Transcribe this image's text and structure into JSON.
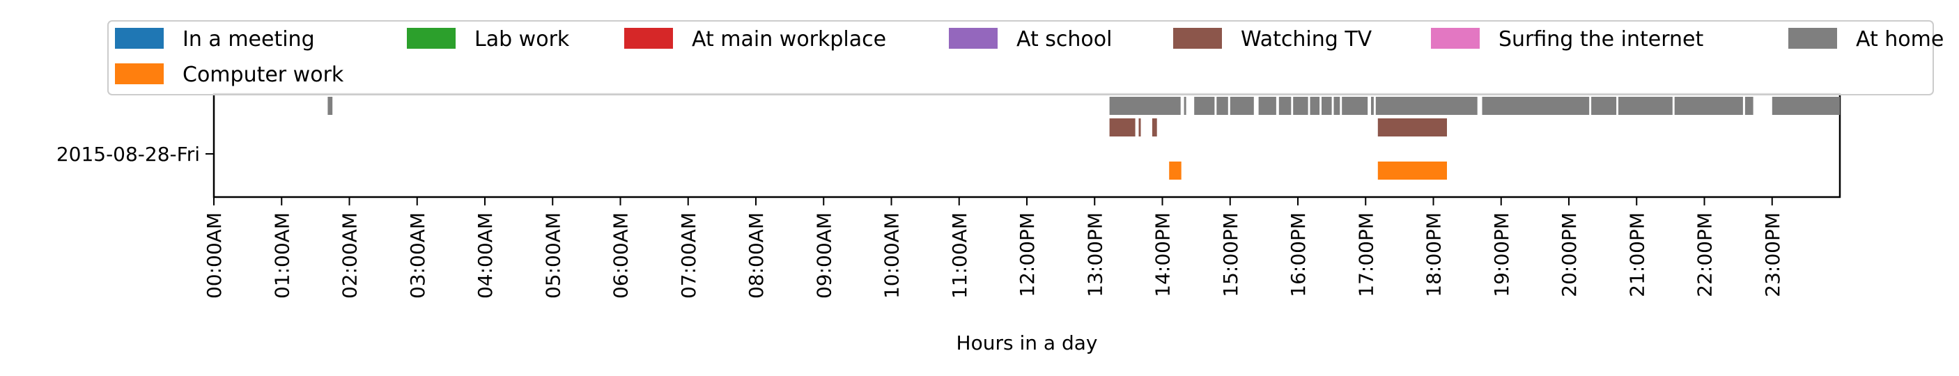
{
  "chart_data": {
    "type": "timeline",
    "xlabel": "Hours in a day",
    "ylabel": "",
    "xlim_hours": [
      0,
      24
    ],
    "x_tick_labels": [
      "00:00AM",
      "01:00AM",
      "02:00AM",
      "03:00AM",
      "04:00AM",
      "05:00AM",
      "06:00AM",
      "07:00AM",
      "08:00AM",
      "09:00AM",
      "10:00AM",
      "11:00AM",
      "12:00PM",
      "13:00PM",
      "14:00PM",
      "15:00PM",
      "16:00PM",
      "17:00PM",
      "18:00PM",
      "19:00PM",
      "20:00PM",
      "21:00PM",
      "22:00PM",
      "23:00PM"
    ],
    "y_categories": [
      "2015-08-28-Fri"
    ],
    "legend": {
      "placement": "top",
      "entries": [
        {
          "label": "In a meeting",
          "color": "#1f77b4"
        },
        {
          "label": "Lab work",
          "color": "#2ca02c"
        },
        {
          "label": "At main workplace",
          "color": "#d62728"
        },
        {
          "label": "At school",
          "color": "#9467bd"
        },
        {
          "label": "Watching TV",
          "color": "#8c564b"
        },
        {
          "label": "Surfing the internet",
          "color": "#e377c2"
        },
        {
          "label": "At home",
          "color": "#7f7f7f"
        },
        {
          "label": "Computer work",
          "color": "#ff7f0e"
        }
      ]
    },
    "series": [
      {
        "name": "At home",
        "color": "#7f7f7f",
        "row": 0,
        "intervals": [
          [
            1.68,
            1.75
          ],
          [
            13.22,
            14.27
          ],
          [
            14.32,
            14.35
          ],
          [
            14.47,
            14.77
          ],
          [
            14.8,
            14.97
          ],
          [
            15.0,
            15.35
          ],
          [
            15.42,
            15.68
          ],
          [
            15.72,
            15.9
          ],
          [
            15.93,
            16.15
          ],
          [
            16.18,
            16.32
          ],
          [
            16.35,
            16.5
          ],
          [
            16.53,
            16.62
          ],
          [
            16.65,
            17.03
          ],
          [
            17.08,
            17.12
          ],
          [
            17.15,
            18.65
          ],
          [
            18.72,
            20.3
          ],
          [
            20.33,
            20.7
          ],
          [
            20.73,
            21.53
          ],
          [
            21.56,
            22.57
          ],
          [
            22.6,
            22.72
          ],
          [
            23.0,
            24.0
          ]
        ]
      },
      {
        "name": "Watching TV",
        "color": "#8c564b",
        "row": 1,
        "intervals": [
          [
            13.22,
            13.6
          ],
          [
            13.65,
            13.68
          ],
          [
            13.85,
            13.92
          ],
          [
            17.18,
            18.2
          ]
        ]
      },
      {
        "name": "Computer work",
        "color": "#ff7f0e",
        "row": 3,
        "intervals": [
          [
            14.1,
            14.28
          ],
          [
            17.18,
            18.2
          ]
        ]
      }
    ]
  }
}
